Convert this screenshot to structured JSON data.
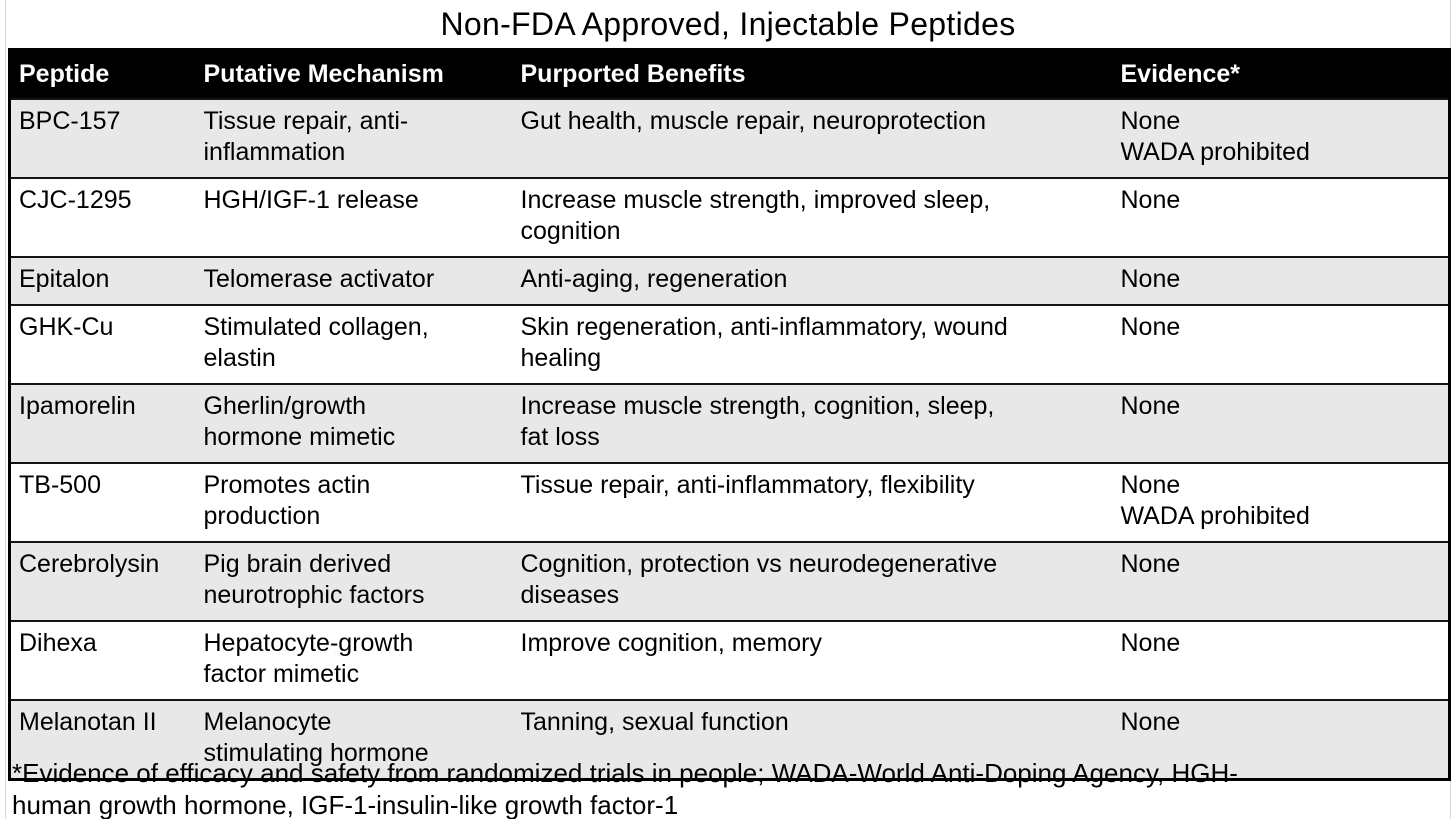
{
  "page": {
    "title": "Non-FDA Approved, Injectable Peptides",
    "footnote": "*Evidence of efficacy and safety from randomized trials in people; WADA-World Anti-Doping Agency, HGH-\nhuman growth hormone, IGF-1-insulin-like growth factor-1"
  },
  "colors": {
    "header_bg": "#000000",
    "header_text": "#ffffff",
    "row_alt_bg": "#e8e8e8",
    "row_bg": "#ffffff",
    "border": "#000000"
  },
  "table": {
    "columns": [
      "Peptide",
      "Putative Mechanism",
      "Purported Benefits",
      "Evidence*"
    ],
    "rows": [
      {
        "peptide": "BPC-157",
        "mechanism": "Tissue repair, anti-\ninflammation",
        "benefits": "Gut health, muscle repair, neuroprotection",
        "evidence": "None\nWADA prohibited"
      },
      {
        "peptide": "CJC-1295",
        "mechanism": "HGH/IGF-1 release",
        "benefits": "Increase muscle strength, improved sleep,\ncognition",
        "evidence": "None"
      },
      {
        "peptide": "Epitalon",
        "mechanism": "Telomerase activator",
        "benefits": "Anti-aging, regeneration",
        "evidence": "None"
      },
      {
        "peptide": "GHK-Cu",
        "mechanism": "Stimulated collagen,\nelastin",
        "benefits": "Skin regeneration, anti-inflammatory, wound\nhealing",
        "evidence": "None"
      },
      {
        "peptide": "Ipamorelin",
        "mechanism": "Gherlin/growth\nhormone mimetic",
        "benefits": "Increase muscle strength, cognition, sleep,\nfat loss",
        "evidence": "None"
      },
      {
        "peptide": "TB-500",
        "mechanism": "Promotes actin\nproduction",
        "benefits": "Tissue repair, anti-inflammatory, flexibility",
        "evidence": "None\nWADA prohibited"
      },
      {
        "peptide": "Cerebrolysin",
        "mechanism": "Pig brain derived\nneurotrophic factors",
        "benefits": "Cognition, protection vs neurodegenerative\ndiseases",
        "evidence": "None"
      },
      {
        "peptide": "Dihexa",
        "mechanism": "Hepatocyte-growth\nfactor mimetic",
        "benefits": "Improve cognition, memory",
        "evidence": "None"
      },
      {
        "peptide": "Melanotan II",
        "mechanism": "Melanocyte\nstimulating hormone",
        "benefits": "Tanning, sexual function",
        "evidence": "None"
      }
    ]
  }
}
